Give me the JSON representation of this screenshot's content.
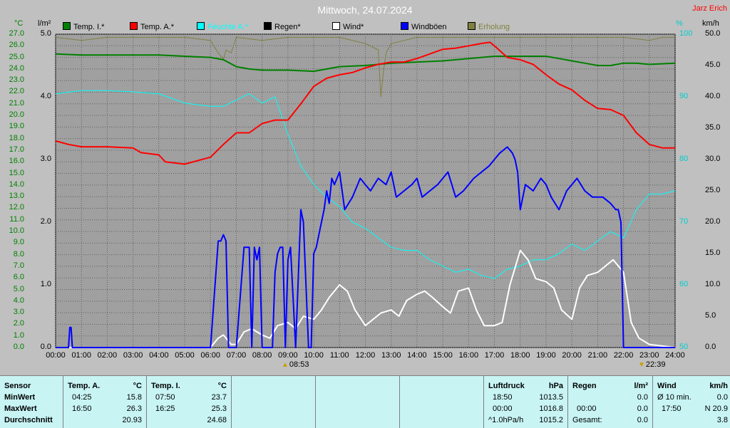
{
  "header": {
    "title": "Mittwoch, 24.07.2024",
    "author": "Jarz Erich",
    "unit_temp": "°C",
    "unit_rain": "l/m²",
    "unit_percent": "%",
    "unit_speed": "km/h"
  },
  "legend": [
    {
      "label": "Temp. I.*",
      "color": "#008000"
    },
    {
      "label": "Temp. A.*",
      "color": "#ff0000"
    },
    {
      "label": "Feuchte A.*",
      "color": "#00ffff"
    },
    {
      "label": "Regen*",
      "color": "#000000"
    },
    {
      "label": "Wind*",
      "color": "#ffffff"
    },
    {
      "label": "Windböen",
      "color": "#0000ff"
    },
    {
      "label": "Erholung",
      "color": "#808040"
    }
  ],
  "chart_data": {
    "type": "line",
    "x_unit": "hours",
    "xlim": [
      0,
      24
    ],
    "x_ticks": [
      "00:00",
      "01:00",
      "02:00",
      "03:00",
      "04:00",
      "05:00",
      "06:00",
      "07:00",
      "08:00",
      "09:00",
      "10:00",
      "11:00",
      "12:00",
      "13:00",
      "14:00",
      "15:00",
      "16:00",
      "17:00",
      "18:00",
      "19:00",
      "20:00",
      "21:00",
      "22:00",
      "23:00",
      "24:00"
    ],
    "axes": {
      "temp": {
        "ylim": [
          0,
          27
        ],
        "ticks": [
          "0.0",
          "1.0",
          "2.0",
          "3.0",
          "4.0",
          "5.0",
          "6.0",
          "7.0",
          "8.0",
          "9.0",
          "10.0",
          "11.0",
          "12.0",
          "13.0",
          "14.0",
          "15.0",
          "16.0",
          "17.0",
          "18.0",
          "19.0",
          "20.0",
          "21.0",
          "22.0",
          "23.0",
          "24.0",
          "25.0",
          "26.0",
          "27.0"
        ]
      },
      "rain": {
        "ylim": [
          0,
          5
        ],
        "ticks": [
          "0.0",
          "1.0",
          "2.0",
          "3.0",
          "4.0",
          "5.0"
        ]
      },
      "humidity": {
        "ylim": [
          50,
          100
        ],
        "ticks": [
          "50",
          "60",
          "70",
          "80",
          "90",
          "100"
        ]
      },
      "speed": {
        "ylim": [
          0,
          50
        ],
        "ticks": [
          "0.0",
          "5.0",
          "10.0",
          "15.0",
          "20.0",
          "25.0",
          "30.0",
          "35.0",
          "40.0",
          "45.0",
          "50.0"
        ]
      }
    },
    "series": [
      {
        "name": "Temp. I.*",
        "axis": "temp",
        "color": "#008000",
        "x": [
          0,
          1,
          2,
          3,
          4,
          5,
          6,
          6.5,
          7,
          7.5,
          8,
          9,
          10,
          10.5,
          11,
          12,
          13,
          14,
          15,
          16,
          17,
          18,
          19,
          19.5,
          20,
          20.5,
          21,
          21.5,
          22,
          22.5,
          23,
          24
        ],
        "y": [
          25.3,
          25.2,
          25.2,
          25.2,
          25.2,
          25.1,
          25.0,
          24.8,
          24.2,
          24.0,
          23.9,
          23.9,
          23.8,
          24.0,
          24.2,
          24.3,
          24.5,
          24.6,
          24.7,
          24.9,
          25.1,
          25.1,
          25.1,
          24.9,
          24.7,
          24.5,
          24.3,
          24.3,
          24.5,
          24.5,
          24.4,
          24.5
        ]
      },
      {
        "name": "Temp. A.*",
        "axis": "temp",
        "color": "#ff0000",
        "x": [
          0,
          0.5,
          1,
          2,
          3,
          3.3,
          4,
          4.25,
          5,
          6,
          6.5,
          7,
          7.5,
          8,
          8.5,
          9,
          9.5,
          10,
          10.5,
          11,
          11.5,
          12,
          12.5,
          13,
          13.5,
          14,
          14.5,
          15,
          15.5,
          16,
          16.5,
          16.83,
          17,
          17.5,
          18,
          18.5,
          19,
          19.5,
          20,
          20.5,
          21,
          21.5,
          22,
          22.5,
          23,
          23.5,
          24
        ],
        "y": [
          17.8,
          17.5,
          17.3,
          17.3,
          17.2,
          16.8,
          16.6,
          16.0,
          15.8,
          16.4,
          17.5,
          18.5,
          18.5,
          19.3,
          19.6,
          19.6,
          21.0,
          22.5,
          23.2,
          23.5,
          23.7,
          24.1,
          24.4,
          24.6,
          24.6,
          24.9,
          25.3,
          25.7,
          25.8,
          26.0,
          26.2,
          26.3,
          26.0,
          25.0,
          24.8,
          24.4,
          23.5,
          22.7,
          22.2,
          21.3,
          20.6,
          20.5,
          20.0,
          18.5,
          17.5,
          17.2,
          17.2
        ]
      },
      {
        "name": "Feuchte A.*",
        "axis": "humidity",
        "color": "#00ffff",
        "x": [
          0,
          1,
          2,
          3,
          4,
          5,
          6,
          6.5,
          7,
          7.5,
          8,
          8.5,
          9,
          9.5,
          10,
          10.5,
          11,
          11.5,
          12,
          12.5,
          13,
          13.5,
          14,
          14.5,
          15,
          15.5,
          16,
          16.5,
          17,
          17.5,
          18,
          18.5,
          19,
          19.5,
          20,
          20.5,
          21,
          21.5,
          22,
          22.5,
          23,
          23.5,
          24
        ],
        "y": [
          90.5,
          91.0,
          91.0,
          90.8,
          90.5,
          89.0,
          88.5,
          88.5,
          89.5,
          90.5,
          89.0,
          90.0,
          84.0,
          79.0,
          76.0,
          74.0,
          72.5,
          70.0,
          69.0,
          67.5,
          66.0,
          65.5,
          65.5,
          64.0,
          63.0,
          62.0,
          62.5,
          61.5,
          61.0,
          62.5,
          63.0,
          64.0,
          64.0,
          65.0,
          66.5,
          65.5,
          67.0,
          68.5,
          67.5,
          72.0,
          74.5,
          74.5,
          75.0
        ]
      },
      {
        "name": "Windböen",
        "axis": "speed",
        "color": "#0000ff",
        "x": [
          0,
          0.5,
          0.55,
          0.6,
          0.65,
          6,
          6.3,
          6.4,
          6.5,
          6.6,
          6.7,
          7,
          7.3,
          7.5,
          7.6,
          7.7,
          7.8,
          7.9,
          8,
          8.1,
          8.2,
          8.4,
          8.5,
          8.6,
          8.7,
          8.8,
          8.9,
          9,
          9.1,
          9.3,
          9.5,
          9.6,
          9.7,
          9.8,
          9.9,
          10,
          10.1,
          10.2,
          10.3,
          10.4,
          10.5,
          10.6,
          10.7,
          10.8,
          11,
          11.2,
          11.5,
          11.8,
          12,
          12.2,
          12.5,
          12.8,
          13,
          13.2,
          13.5,
          13.8,
          14,
          14.2,
          14.5,
          14.8,
          15,
          15.2,
          15.5,
          15.8,
          16,
          16.2,
          16.5,
          16.8,
          17,
          17.2,
          17.5,
          17.7,
          17.8,
          17.9,
          18,
          18.2,
          18.5,
          18.8,
          19,
          19.2,
          19.5,
          19.8,
          20,
          20.2,
          20.5,
          20.8,
          21,
          21.2,
          21.5,
          21.7,
          21.8,
          21.9,
          22,
          24
        ],
        "y": [
          0,
          0,
          3.2,
          3.2,
          0,
          0,
          17,
          17,
          18,
          17,
          0,
          0,
          16,
          16,
          0,
          16,
          14,
          16,
          0,
          0,
          0,
          0,
          12,
          15,
          16,
          16,
          0,
          14,
          16,
          0,
          22,
          20,
          10,
          0,
          0,
          15,
          16,
          18,
          20,
          22,
          25,
          23,
          27,
          26,
          28,
          22,
          24,
          27,
          26,
          25,
          27,
          26,
          28,
          24,
          25,
          26,
          27,
          24,
          25,
          26,
          27,
          28,
          24,
          25,
          26,
          27,
          28,
          29,
          30,
          31,
          32,
          31,
          30,
          28,
          22,
          26,
          25,
          27,
          26,
          24,
          22,
          25,
          26,
          27,
          25,
          24,
          24,
          24,
          23,
          22,
          22,
          20,
          0,
          0
        ]
      },
      {
        "name": "Wind*",
        "axis": "speed",
        "color": "#ffffff",
        "x": [
          0,
          6,
          6.3,
          6.5,
          6.8,
          7,
          7.3,
          7.6,
          8,
          8.3,
          8.6,
          9,
          9.3,
          9.6,
          10,
          10.3,
          10.6,
          11,
          11.3,
          11.6,
          12,
          12.3,
          12.6,
          13,
          13.3,
          13.6,
          14,
          14.3,
          14.6,
          15,
          15.3,
          15.6,
          16,
          16.3,
          16.6,
          17,
          17.3,
          17.6,
          18,
          18.3,
          18.6,
          19,
          19.3,
          19.6,
          20,
          20.3,
          20.6,
          21,
          21.3,
          21.6,
          22,
          22.3,
          22.6,
          23,
          24
        ],
        "y": [
          0,
          0,
          1.5,
          2.0,
          0.5,
          0.5,
          2.5,
          3.0,
          2.0,
          1.5,
          3.5,
          4.0,
          3.0,
          5.0,
          4.5,
          6.0,
          8.0,
          10.0,
          9.0,
          6.0,
          3.5,
          4.5,
          5.5,
          6.0,
          5.0,
          7.5,
          8.5,
          9.0,
          8.0,
          6.5,
          5.5,
          9.0,
          9.5,
          6.0,
          3.5,
          3.5,
          4.0,
          10.0,
          15.5,
          14.0,
          11.0,
          10.5,
          9.5,
          6.0,
          4.5,
          9.5,
          11.5,
          12.0,
          13.0,
          14.0,
          12.0,
          4.0,
          1.5,
          0.5,
          0
        ]
      },
      {
        "name": "Erholung",
        "axis": "humidity",
        "color": "#808040",
        "x": [
          0,
          1,
          2,
          3,
          4,
          5,
          6,
          6.3,
          6.5,
          6.6,
          6.8,
          7,
          8,
          9,
          10,
          11,
          12,
          12.5,
          12.6,
          12.7,
          12.8,
          13,
          13.5,
          14,
          15,
          16,
          17,
          18,
          19,
          20,
          21,
          22,
          23,
          23.5,
          24
        ],
        "y": [
          99.5,
          99.0,
          99.5,
          99.5,
          99.5,
          99.5,
          99.0,
          97.0,
          96.0,
          97.5,
          97.0,
          99.5,
          99.0,
          99.5,
          99.5,
          99.5,
          98.5,
          97.5,
          90.0,
          94.0,
          97.0,
          98.5,
          99.0,
          99.5,
          99.5,
          99.5,
          99.5,
          99.5,
          99.5,
          99.5,
          99.5,
          99.5,
          99.0,
          99.5,
          99.5
        ]
      }
    ],
    "annotations": [
      {
        "time": "08:53",
        "label": "08:53",
        "kind": "sunrise"
      },
      {
        "time": "22:39",
        "label": "22:39",
        "kind": "sunset"
      }
    ]
  },
  "table": {
    "sensor_col": [
      "Sensor",
      "MinWert",
      "MaxWert",
      "Durchschnitt"
    ],
    "temp_a": {
      "head": "Temp. A.",
      "unit": "°C",
      "min_time": "04:25",
      "min_val": "15.8",
      "max_time": "16:50",
      "max_val": "26.3",
      "avg": "20.93"
    },
    "temp_i": {
      "head": "Temp. I.",
      "unit": "°C",
      "min_time": "07:50",
      "min_val": "23.7",
      "max_time": "16:25",
      "max_val": "25.3",
      "avg": "24.68"
    },
    "pressure": {
      "head": "Luftdruck",
      "unit": "hPa",
      "min_time": "18:50",
      "min_val": "1013.5",
      "max_time": "00:00",
      "max_val": "1016.8",
      "avg_label": "^1.0hPa/h",
      "avg": "1015.2"
    },
    "rain": {
      "head": "Regen",
      "unit": "l/m²",
      "min_val": "0.0",
      "max_time": "00:00",
      "max_val": "0.0",
      "avg_label": "Gesamt:",
      "avg": "0.0"
    },
    "wind": {
      "head": "Wind",
      "unit": "km/h",
      "min_label": "Ø 10 min.",
      "min_val": "0.0",
      "max_time": "17:50",
      "max_val": "N 20.9",
      "avg": "3.8"
    }
  }
}
